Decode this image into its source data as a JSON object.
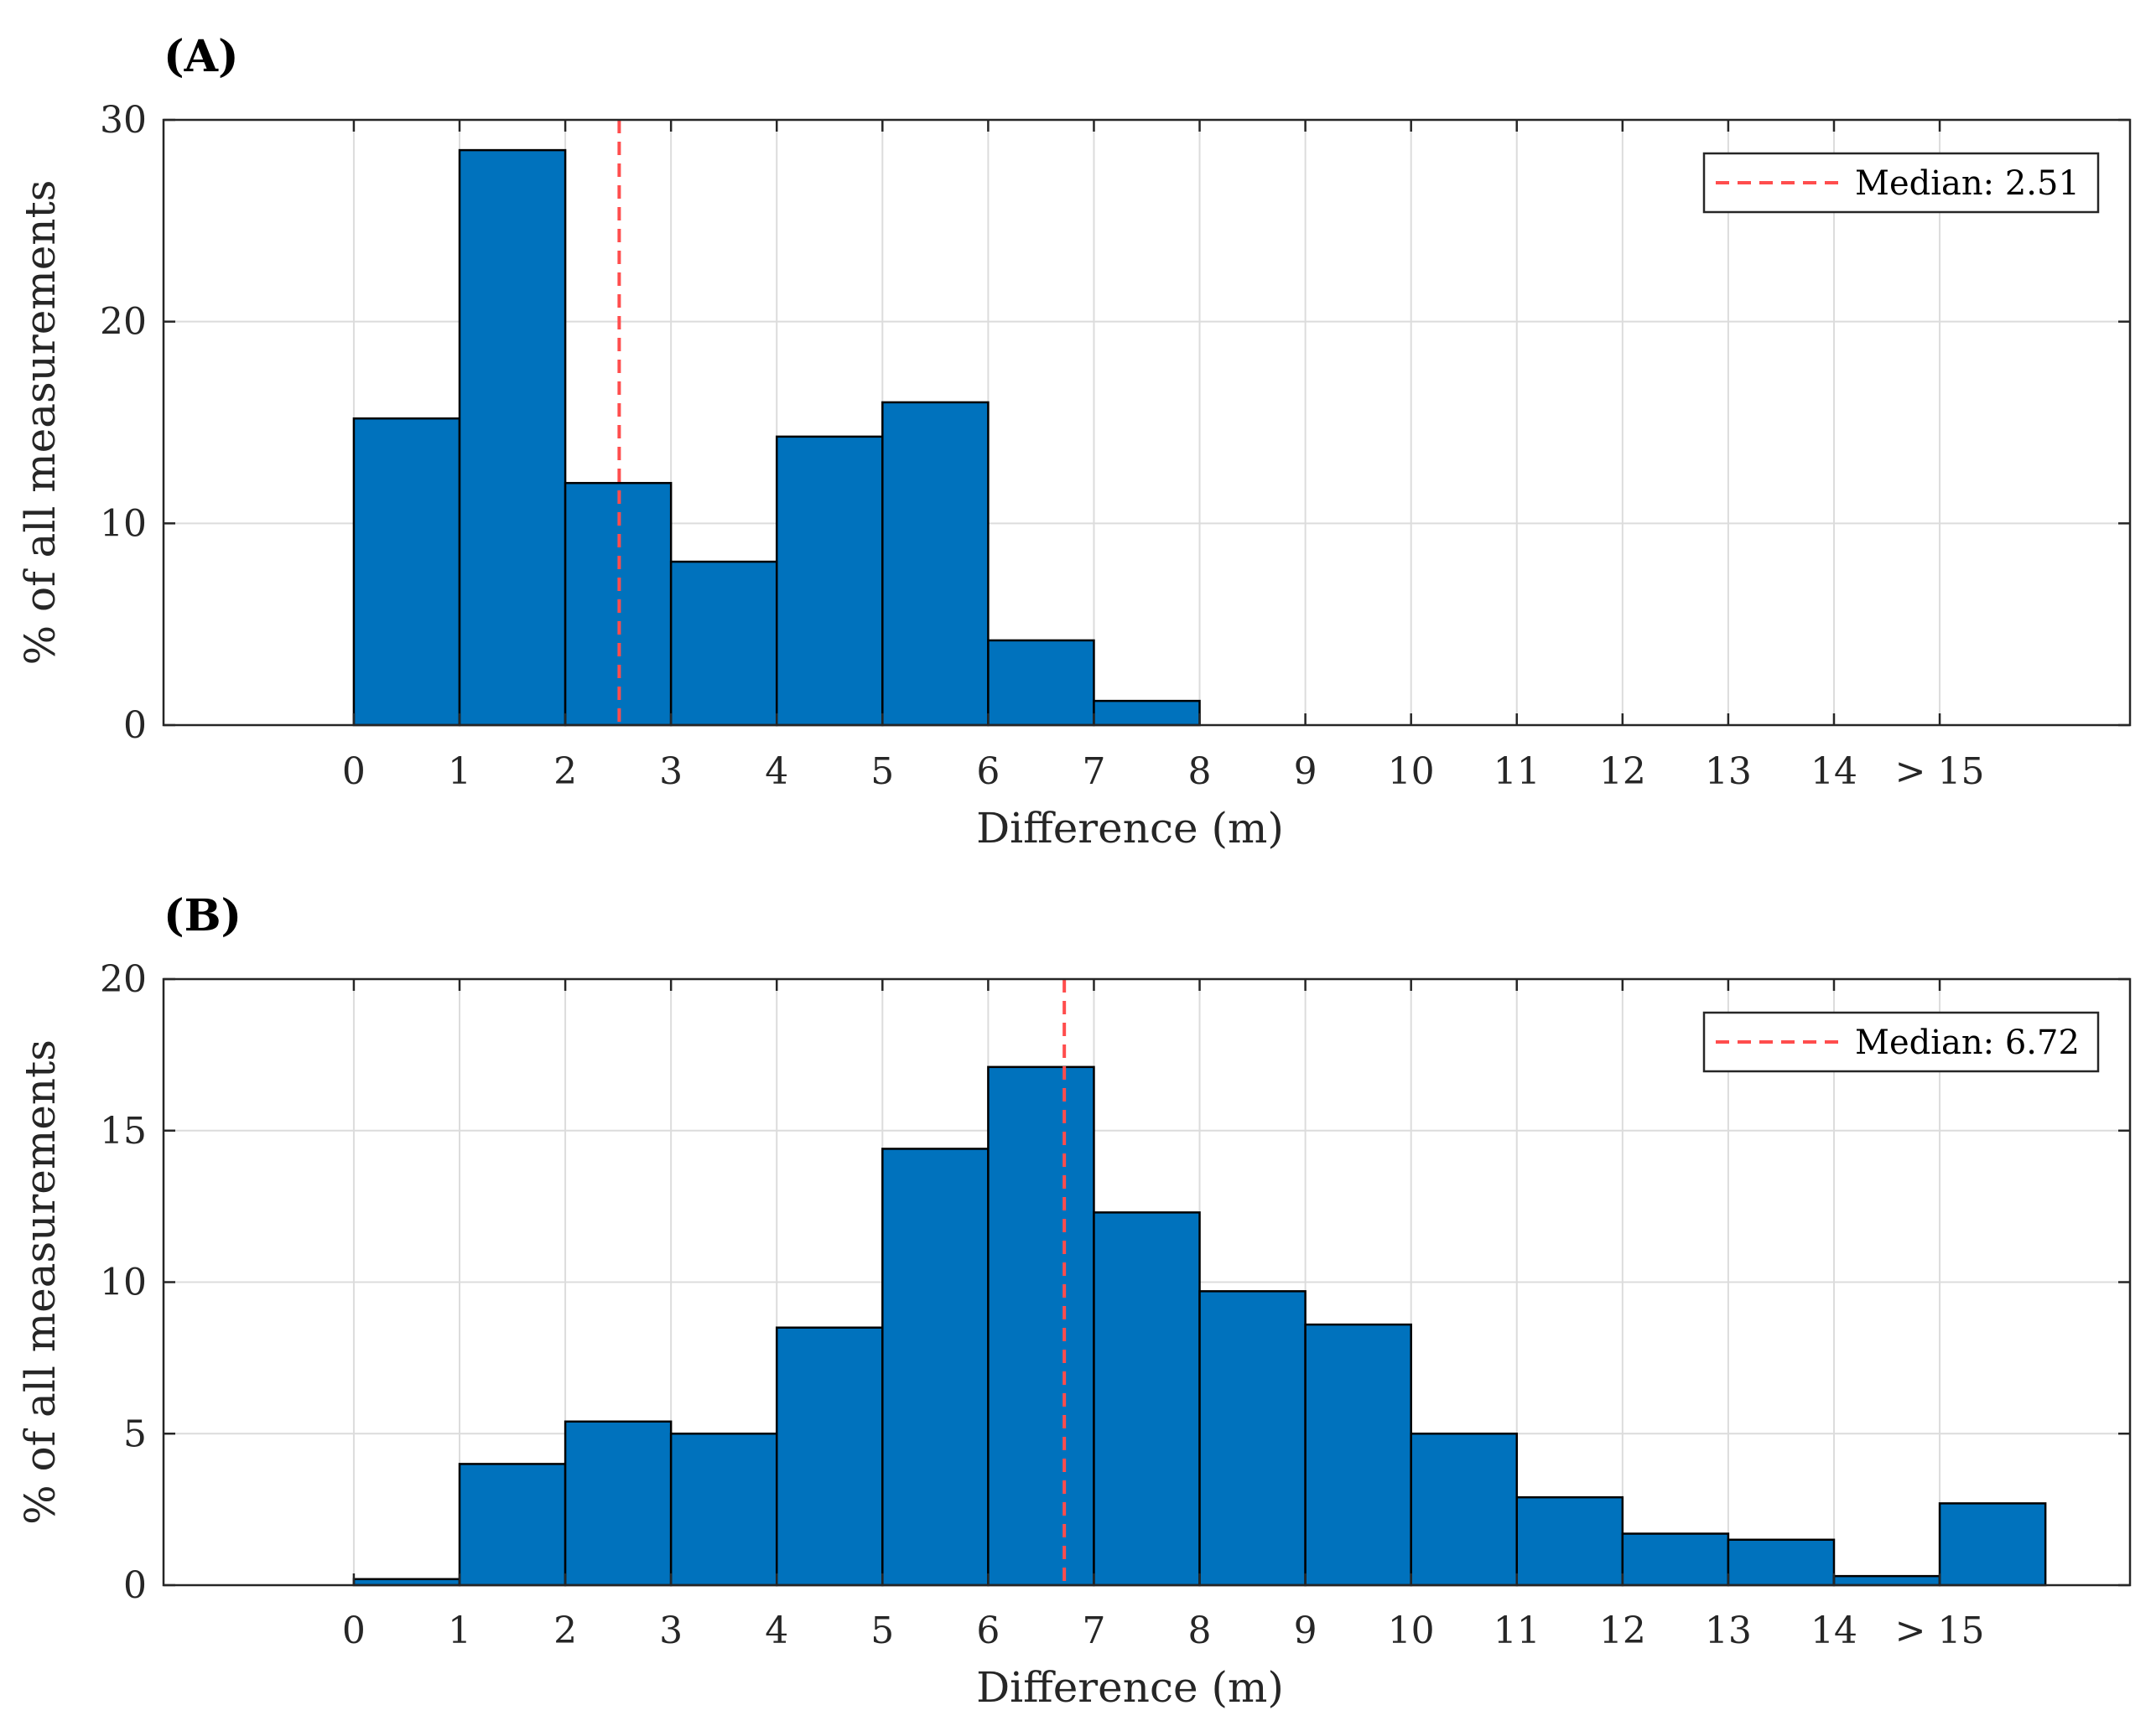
{
  "chart_data": [
    {
      "type": "bar",
      "panel_label": "(A)",
      "categories": [
        "0",
        "1",
        "2",
        "3",
        "4",
        "5",
        "6",
        "7",
        "8",
        "9",
        "10",
        "11",
        "12",
        "13",
        "14",
        "> 15"
      ],
      "x_tick_labels": [
        "0",
        "1",
        "2",
        "3",
        "4",
        "5",
        "6",
        "7",
        "8",
        "9",
        "10",
        "11",
        "12",
        "13",
        "14",
        "> 15"
      ],
      "values": [
        15.2,
        28.5,
        12.0,
        8.1,
        14.3,
        16.0,
        4.2,
        1.2,
        0,
        0,
        0,
        0,
        0,
        0,
        0,
        0
      ],
      "xlabel": "Difference (m)",
      "ylabel": "% of all measurements",
      "xlim": [
        -1.8,
        16.8
      ],
      "ylim": [
        0,
        30
      ],
      "y_ticks": [
        0,
        10,
        20,
        30
      ],
      "grid": true,
      "bar_color": "#0072bd",
      "median": {
        "value": 2.51,
        "label": "Median: 2.51",
        "color": "#ff4d4d"
      },
      "legend_position": "top-right"
    },
    {
      "type": "bar",
      "panel_label": "(B)",
      "categories": [
        "0",
        "1",
        "2",
        "3",
        "4",
        "5",
        "6",
        "7",
        "8",
        "9",
        "10",
        "11",
        "12",
        "13",
        "14",
        "> 15"
      ],
      "x_tick_labels": [
        "0",
        "1",
        "2",
        "3",
        "4",
        "5",
        "6",
        "7",
        "8",
        "9",
        "10",
        "11",
        "12",
        "13",
        "14",
        "> 15"
      ],
      "values": [
        0.2,
        4.0,
        5.4,
        5.0,
        8.5,
        14.4,
        17.1,
        12.3,
        9.7,
        8.6,
        5.0,
        2.9,
        1.7,
        1.5,
        0.3,
        2.7
      ],
      "xlabel": "Difference (m)",
      "ylabel": "% of all measurements",
      "xlim": [
        -1.8,
        16.8
      ],
      "ylim": [
        0,
        20
      ],
      "y_ticks": [
        0,
        5,
        10,
        15,
        20
      ],
      "grid": true,
      "bar_color": "#0072bd",
      "median": {
        "value": 6.72,
        "label": "Median: 6.72",
        "color": "#ff4d4d"
      },
      "legend_position": "top-right"
    }
  ]
}
